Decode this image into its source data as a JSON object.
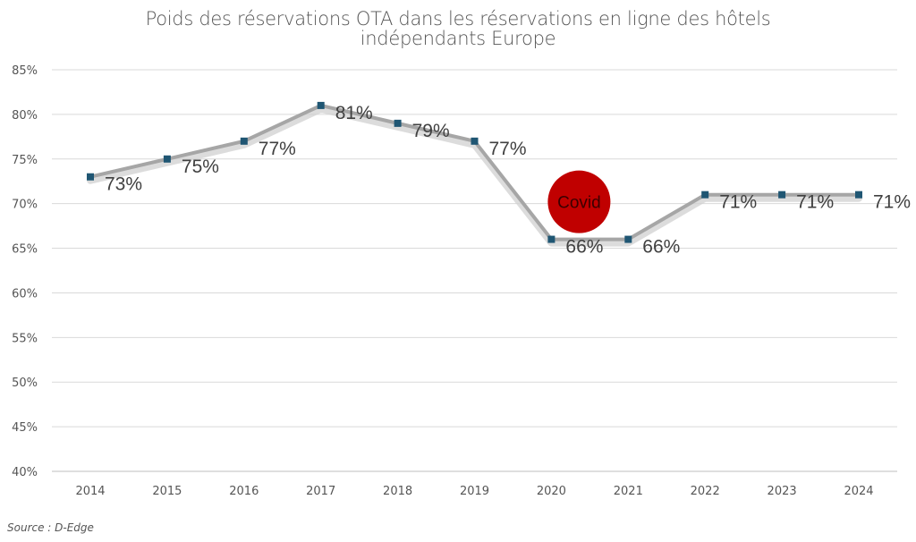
{
  "chart_data": {
    "type": "line",
    "title_line1": "Poids des réservations OTA dans les réservations en ligne des hôtels",
    "title_line2": "indépendants Europe",
    "categories": [
      "2014",
      "2015",
      "2016",
      "2017",
      "2018",
      "2019",
      "2020",
      "2021",
      "2022",
      "2023",
      "2024"
    ],
    "values": [
      73,
      75,
      77,
      81,
      79,
      77,
      66,
      66,
      71,
      71,
      71
    ],
    "data_labels": [
      "73%",
      "75%",
      "77%",
      "81%",
      "79%",
      "77%",
      "66%",
      "66%",
      "71%",
      "71%",
      "71%"
    ],
    "y_ticks": [
      "40%",
      "45%",
      "50%",
      "55%",
      "60%",
      "65%",
      "70%",
      "75%",
      "80%",
      "85%"
    ],
    "ylim": [
      40,
      85
    ],
    "grid": true,
    "line_color": "#a6a6a6",
    "marker_color": "#1f5673",
    "annotation": {
      "text": "Covid",
      "color": "#c00000",
      "near_category": "2020"
    }
  },
  "source": "Source : D-Edge"
}
